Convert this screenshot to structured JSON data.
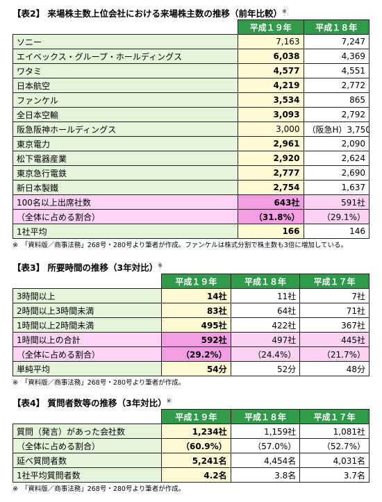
{
  "tables": [
    {
      "title": "【表2】 来場株主数上位会社における来場株主数の推移（前年比較）",
      "mark": "※",
      "headers": [
        "平成１９年",
        "平成１８年"
      ],
      "rows": [
        {
          "label": "ソニー",
          "cells": [
            "7,163",
            "7,247"
          ],
          "bold": false
        },
        {
          "label": "エイベックス・グループ・ホールディングス",
          "cells": [
            "6,038",
            "4,369"
          ],
          "bold": true
        },
        {
          "label": "ワタミ",
          "cells": [
            "4,577",
            "4,551"
          ],
          "bold": true
        },
        {
          "label": "日本航空",
          "cells": [
            "4,219",
            "2,772"
          ],
          "bold": true
        },
        {
          "label": "ファンケル",
          "cells": [
            "3,534",
            "865"
          ],
          "bold": true
        },
        {
          "label": "全日本空輸",
          "cells": [
            "3,093",
            "2,792"
          ],
          "bold": true
        },
        {
          "label": "阪急阪神ホールディングス",
          "cells": [
            "3,000",
            "（阪急H）3,750"
          ],
          "bold": false
        },
        {
          "label": "東京電力",
          "cells": [
            "2,961",
            "2,090"
          ],
          "bold": true
        },
        {
          "label": "松下電器産業",
          "cells": [
            "2,920",
            "2,624"
          ],
          "bold": true
        },
        {
          "label": "東京急行電鉄",
          "cells": [
            "2,777",
            "2,690"
          ],
          "bold": true
        },
        {
          "label": "新日本製鐵",
          "cells": [
            "2,754",
            "1,637"
          ],
          "bold": true
        },
        {
          "label": "100名以上出席社数",
          "cells": [
            "643社",
            "591社"
          ],
          "bold": true,
          "fill": "pink"
        },
        {
          "label": "（全体に占める割合）",
          "cells": [
            "（31.8%）",
            "（29.1%）"
          ],
          "bold": true,
          "fill": "pink"
        },
        {
          "label": "1社平均",
          "cells": [
            "166",
            "146"
          ],
          "bold": true
        }
      ],
      "note": "※　「資料版／商事法務」268号・280号より筆者が作成。ファンケルは株式分割で株主数も3倍に増加している。"
    },
    {
      "title": "【表3】 所要時間の推移（3年対比）",
      "mark": "※",
      "headers": [
        "平成１９年",
        "平成１８年",
        "平成１７年"
      ],
      "rows": [
        {
          "label": "3時間以上",
          "cells": [
            "14社",
            "11社",
            "7社"
          ],
          "bold": true
        },
        {
          "label": "2時間以上3時間未満",
          "cells": [
            "83社",
            "64社",
            "71社"
          ],
          "bold": true
        },
        {
          "label": "1時間以上2時間未満",
          "cells": [
            "495社",
            "422社",
            "367社"
          ],
          "bold": true
        },
        {
          "label": "1時間以上の合計",
          "cells": [
            "592社",
            "497社",
            "445社"
          ],
          "bold": true,
          "fill": "pink"
        },
        {
          "label": "（全体に占める割合）",
          "cells": [
            "（29.2%）",
            "（24.4%）",
            "（21.7%）"
          ],
          "bold": true,
          "fill": "pink"
        },
        {
          "label": "単純平均",
          "cells": [
            "54分",
            "52分",
            "48分"
          ],
          "bold": true
        }
      ],
      "note": "※　「資料版／商事法務」268号・280号より筆者が作成。"
    },
    {
      "title": "【表4】 質問者数等の推移（3年対比）",
      "mark": "※",
      "headers": [
        "平成１９年",
        "平成１８年",
        "平成１７年"
      ],
      "rows": [
        {
          "label": "質問（発言）があった会社数",
          "cells": [
            "1,234社",
            "1,159社",
            "1,081社"
          ],
          "bold": true
        },
        {
          "label": "（全体に占める割合）",
          "cells": [
            "（60.9%）",
            "（57.0%）",
            "（52.7%）"
          ],
          "bold": true
        },
        {
          "label": "延べ質問者数",
          "cells": [
            "5,241名",
            "4,454名",
            "4,031名"
          ],
          "bold": true
        },
        {
          "label": "1社平均質問者数",
          "cells": [
            "4.2名",
            "3.8名",
            "3.7名"
          ],
          "bold": true
        }
      ],
      "note": "※　「資料版／商事法務」268号・280号より筆者が作成。"
    }
  ]
}
